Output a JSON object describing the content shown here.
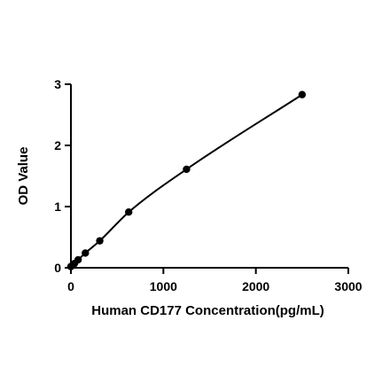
{
  "chart_data": {
    "type": "scatter",
    "title": "",
    "xlabel": "Human CD177 Concentration(pg/mL)",
    "ylabel": "OD Value",
    "xlim": [
      0,
      3000
    ],
    "ylim": [
      0,
      3
    ],
    "x_ticks": [
      "0",
      "1000",
      "2000",
      "3000"
    ],
    "y_ticks": [
      "0",
      "1",
      "2",
      "3"
    ],
    "grid": false,
    "legend": "none",
    "fit_line": true,
    "series": [
      {
        "x": [
          0,
          39,
          78,
          156,
          312,
          625,
          1250,
          2500
        ],
        "y": [
          0.02,
          0.07,
          0.13,
          0.24,
          0.44,
          0.91,
          1.61,
          2.83
        ]
      }
    ],
    "colors": {
      "points": "#000000",
      "line": "#000000"
    }
  }
}
